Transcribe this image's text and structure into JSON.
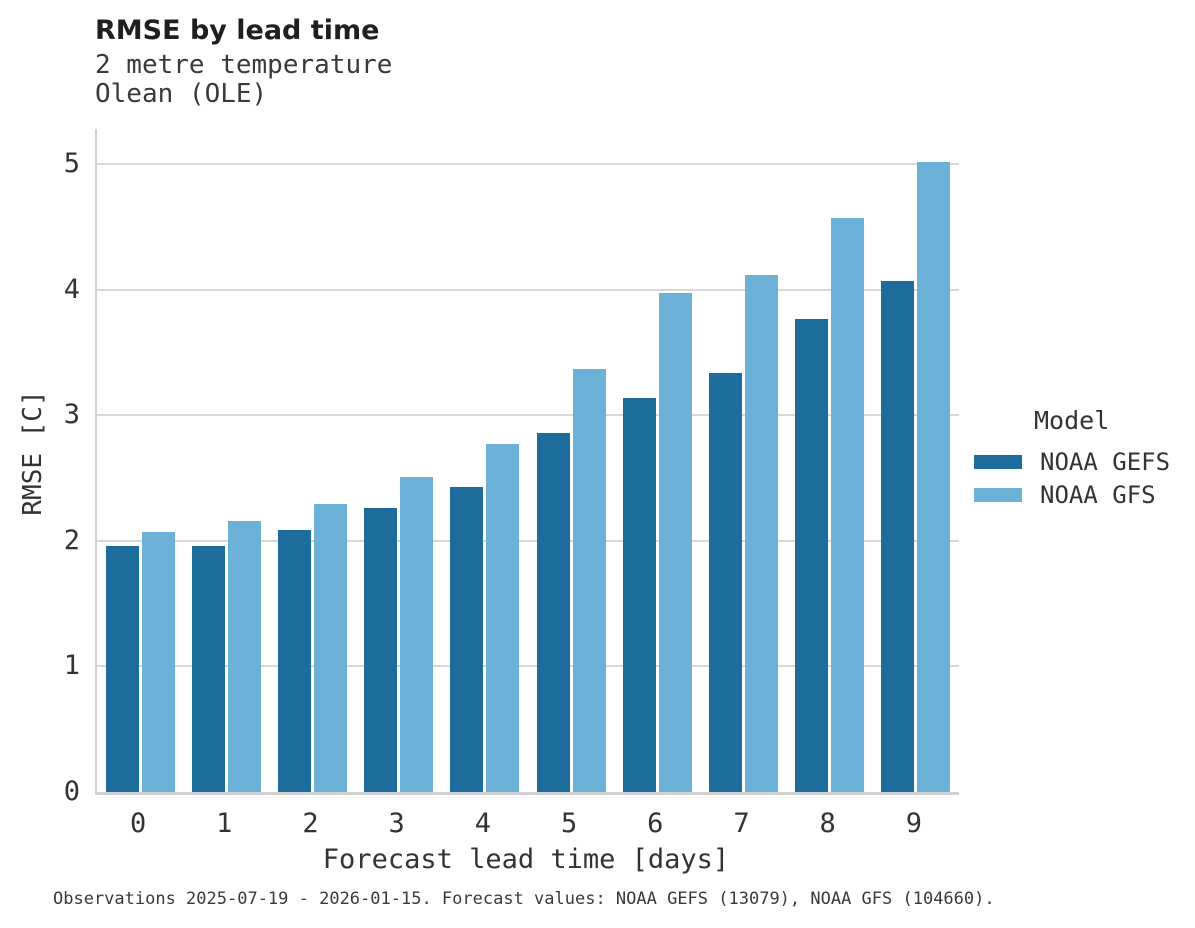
{
  "header": {
    "title": "RMSE by lead time",
    "subtitle_line1": "2 metre temperature",
    "subtitle_line2": "Olean (OLE)"
  },
  "chart_data": {
    "type": "bar",
    "title": "RMSE by lead time",
    "subtitle": [
      "2 metre temperature",
      "Olean (OLE)"
    ],
    "xlabel": "Forecast lead time [days]",
    "ylabel": "RMSE [C]",
    "categories": [
      "0",
      "1",
      "2",
      "3",
      "4",
      "5",
      "6",
      "7",
      "8",
      "9"
    ],
    "series": [
      {
        "name": "NOAA GEFS",
        "color": "#1c6d9c",
        "values": [
          1.96,
          1.96,
          2.09,
          2.26,
          2.43,
          2.86,
          3.14,
          3.34,
          3.77,
          4.07
        ]
      },
      {
        "name": "NOAA GFS",
        "color": "#6cb1d8",
        "values": [
          2.07,
          2.16,
          2.29,
          2.51,
          2.77,
          3.37,
          3.97,
          4.12,
          4.57,
          5.02
        ]
      }
    ],
    "ylim": [
      0,
      5.28
    ],
    "yticks": [
      0,
      1,
      2,
      3,
      4,
      5
    ],
    "grid": true,
    "legend_title": "Model",
    "legend_position": "right-outside"
  },
  "legend": {
    "title": "Model",
    "items": [
      {
        "label": "NOAA GEFS",
        "color": "#1c6d9c"
      },
      {
        "label": "NOAA GFS",
        "color": "#6cb1d8"
      }
    ]
  },
  "footer": {
    "note": "Observations 2025-07-19 - 2026-01-15. Forecast values: NOAA GEFS (13079), NOAA GFS (104660)."
  },
  "colors": {
    "bar_dark": "#1c6d9c",
    "bar_light": "#6cb1d8",
    "axis": "#d2d2d2",
    "gridline": "#d8d8d8",
    "text": "#333333",
    "background": "#ffffff"
  }
}
